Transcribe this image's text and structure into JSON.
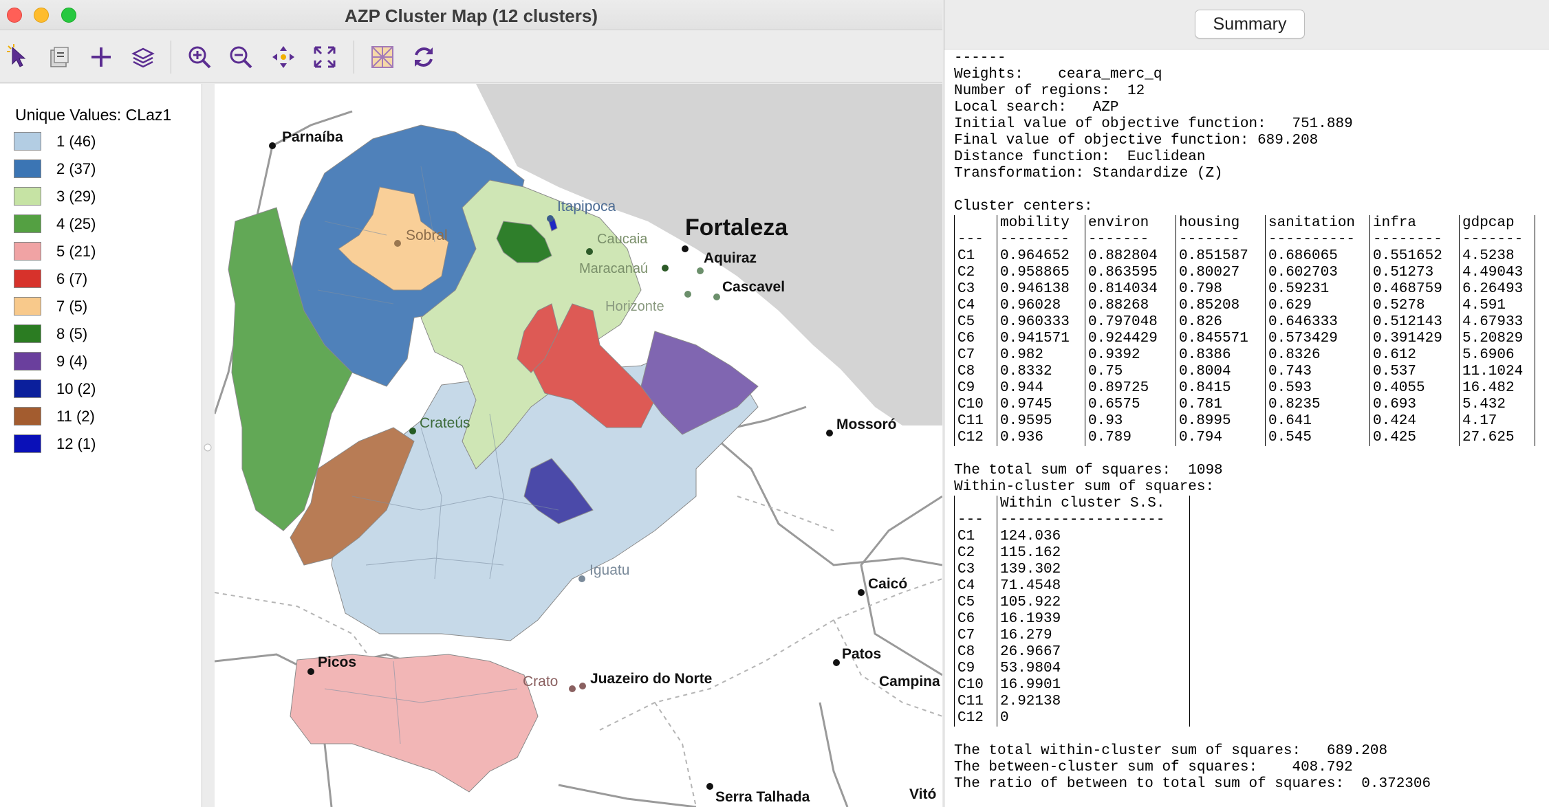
{
  "window": {
    "title": "AZP Cluster Map (12 clusters)"
  },
  "toolbar": {
    "tools": [
      "select-tool",
      "selection-style-tool",
      "add-tool",
      "layers-tool",
      "zoom-in-tool",
      "zoom-out-tool",
      "pan-tool",
      "fit-extent-tool",
      "basemap-tool",
      "refresh-tool"
    ]
  },
  "legend": {
    "title": "Unique Values: CLaz1",
    "items": [
      {
        "label": "1 (46)",
        "color": "#b3cde3"
      },
      {
        "label": "2 (37)",
        "color": "#3b75b4"
      },
      {
        "label": "3 (29)",
        "color": "#c6e3a4"
      },
      {
        "label": "4 (25)",
        "color": "#54a042"
      },
      {
        "label": "5 (21)",
        "color": "#f0a3a4"
      },
      {
        "label": "6 (7)",
        "color": "#d7322b"
      },
      {
        "label": "7 (5)",
        "color": "#f8c98b"
      },
      {
        "label": "8 (5)",
        "color": "#2b7c22"
      },
      {
        "label": "9 (4)",
        "color": "#6a3f9d"
      },
      {
        "label": "10 (2)",
        "color": "#0b1f9c"
      },
      {
        "label": "11 (2)",
        "color": "#a35c2f"
      },
      {
        "label": "12 (1)",
        "color": "#0a10b8"
      }
    ]
  },
  "map": {
    "cities": [
      {
        "name": "Parnaíba"
      },
      {
        "name": "Itapipoca"
      },
      {
        "name": "Sobral"
      },
      {
        "name": "Caucaia"
      },
      {
        "name": "Fortaleza"
      },
      {
        "name": "Maracanaú"
      },
      {
        "name": "Aquiraz"
      },
      {
        "name": "Cascavel"
      },
      {
        "name": "Horizonte"
      },
      {
        "name": "Crateús"
      },
      {
        "name": "Mossoró"
      },
      {
        "name": "Iguatu"
      },
      {
        "name": "Caicó"
      },
      {
        "name": "Picos"
      },
      {
        "name": "Patos"
      },
      {
        "name": "Campina"
      },
      {
        "name": "Crato"
      },
      {
        "name": "Juazeiro do Norte"
      },
      {
        "name": "Serra Talhada"
      },
      {
        "name": "Vitó"
      }
    ]
  },
  "summary": {
    "tab_label": "Summary",
    "header_lines": [
      "------",
      "Weights:    ceara_merc_q",
      "Number of regions:  12",
      "Local search:   AZP",
      "Initial value of objective function:   751.889",
      "Final value of objective function: 689.208",
      "Distance function:  Euclidean",
      "Transformation: Standardize (Z)",
      "",
      "Cluster centers:"
    ],
    "centers": {
      "columns": [
        "",
        "mobility",
        "environ",
        "housing",
        "sanitation",
        "infra",
        "gdpcap"
      ],
      "dashes": [
        "---",
        "--------",
        "-------",
        "-------",
        "----------",
        "--------",
        "-------"
      ],
      "rows": [
        [
          "C1",
          "0.964652",
          "0.882804",
          "0.851587",
          "0.686065",
          "0.551652",
          "4.5238"
        ],
        [
          "C2",
          "0.958865",
          "0.863595",
          "0.80027",
          "0.602703",
          "0.51273",
          "4.49043"
        ],
        [
          "C3",
          "0.946138",
          "0.814034",
          "0.798",
          "0.59231",
          "0.468759",
          "6.26493"
        ],
        [
          "C4",
          "0.96028",
          "0.88268",
          "0.85208",
          "0.629",
          "0.5278",
          "4.591"
        ],
        [
          "C5",
          "0.960333",
          "0.797048",
          "0.826",
          "0.646333",
          "0.512143",
          "4.67933"
        ],
        [
          "C6",
          "0.941571",
          "0.924429",
          "0.845571",
          "0.573429",
          "0.391429",
          "5.20829"
        ],
        [
          "C7",
          "0.982",
          "0.9392",
          "0.8386",
          "0.8326",
          "0.612",
          "5.6906"
        ],
        [
          "C8",
          "0.8332",
          "0.75",
          "0.8004",
          "0.743",
          "0.537",
          "11.1024"
        ],
        [
          "C9",
          "0.944",
          "0.89725",
          "0.8415",
          "0.593",
          "0.4055",
          "16.482"
        ],
        [
          "C10",
          "0.9745",
          "0.6575",
          "0.781",
          "0.8235",
          "0.693",
          "5.432"
        ],
        [
          "C11",
          "0.9595",
          "0.93",
          "0.8995",
          "0.641",
          "0.424",
          "4.17"
        ],
        [
          "C12",
          "0.936",
          "0.789",
          "0.794",
          "0.545",
          "0.425",
          "27.625"
        ]
      ]
    },
    "total_ss_line": "The total sum of squares:  1098",
    "within_title": "Within-cluster sum of squares:",
    "within": {
      "columns": [
        "",
        "Within cluster S.S."
      ],
      "dashes": [
        "---",
        "-------------------"
      ],
      "rows": [
        [
          "C1",
          "124.036"
        ],
        [
          "C2",
          "115.162"
        ],
        [
          "C3",
          "139.302"
        ],
        [
          "C4",
          "71.4548"
        ],
        [
          "C5",
          "105.922"
        ],
        [
          "C6",
          "16.1939"
        ],
        [
          "C7",
          "16.279"
        ],
        [
          "C8",
          "26.9667"
        ],
        [
          "C9",
          "53.9804"
        ],
        [
          "C10",
          "16.9901"
        ],
        [
          "C11",
          "2.92138"
        ],
        [
          "C12",
          "0"
        ]
      ]
    },
    "footer_lines": [
      "The total within-cluster sum of squares:   689.208",
      "The between-cluster sum of squares:    408.792",
      "The ratio of between to total sum of squares:  0.372306"
    ]
  }
}
